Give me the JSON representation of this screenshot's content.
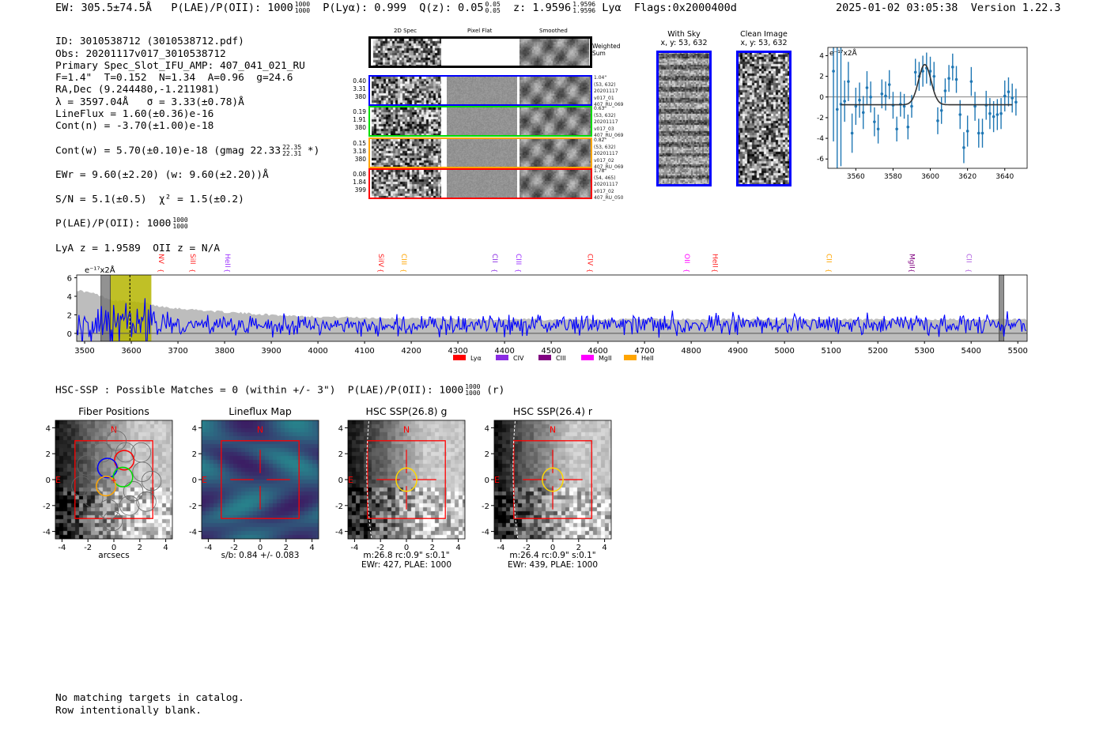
{
  "header": {
    "ew": "EW: 305.5±74.5Å",
    "plae_label": "P(LAE)/P(OII): 1000",
    "plae_hi": "1000",
    "plae_lo": "1000",
    "plya": "P(Lyα): 0.999",
    "qz_label": "Q(z): 0.05",
    "qz_hi": "0.05",
    "qz_lo": "0.05",
    "z_label": "z: 1.9596",
    "z_hi": "1.9596",
    "z_lo": "1.9596",
    "line": "Lyα",
    "flags": "Flags:0x2000400d",
    "datetime": "2025-01-02 03:05:38",
    "version": "Version 1.22.3"
  },
  "info": {
    "lines": [
      "ID: 3010538712 (3010538712.pdf)",
      "Obs: 20201117v017_3010538712",
      "Primary Spec_Slot_IFU_AMP: 407_041_021_RU",
      "F=1.4\"  T=0.152  N=1.34  A=0.96  g=24.6",
      "RA,Dec (9.244480,-1.211981)",
      "λ = 3597.04Å   σ = 3.33(±0.78)Å",
      "LineFlux = 1.60(±0.36)e-16",
      "Cont(n) = -3.70(±1.00)e-18"
    ],
    "contw": "Cont(w) = 5.70(±0.10)e-18 (gmag 22.33",
    "contw_hi": "22.35",
    "contw_lo": "22.31",
    "contw_end": "*)",
    "ewr": "EWr = 9.60(±2.20) (w: 9.60(±2.20))Å",
    "sn": "S/N = 5.1(±0.5)  χ² = 1.5(±0.2)",
    "plae": "P(LAE)/P(OII): 1000",
    "plae_hi": "1000",
    "plae_lo": "1000",
    "z": "LyA z = 1.9589  OII z = N/A"
  },
  "spec2d": {
    "col_headers": [
      "2D Spec",
      "Pixel Flat",
      "Smoothed"
    ],
    "weighted_label": "Weighted\nSum",
    "rows": [
      {
        "color": "#0000ff",
        "left": "0.40\n3.31\n380",
        "right": "1.04\"\n(53, 632)\n20201117\nv017_01\n407_RU_069"
      },
      {
        "color": "#00dd00",
        "left": "0.19\n1.91\n380",
        "right": "0.63\"\n(53, 632)\n20201117\nv017_03\n407_RU_069"
      },
      {
        "color": "#ffa500",
        "left": "0.15\n3.18\n380",
        "right": "0.82\"\n(53, 632)\n20201117\nv017_02\n407_RU_069"
      },
      {
        "color": "#ff0000",
        "left": "0.08\n1.84\n399",
        "right": "1.78\"\n(54, 465)\n20201117\nv017_02\n407_RU_050"
      }
    ]
  },
  "with_sky": {
    "title": "With Sky",
    "coords": "x, y: 53, 632"
  },
  "clean_image": {
    "title": "Clean Image",
    "coords": "x, y: 53, 632"
  },
  "chart_data": [
    {
      "type": "scatter",
      "name": "line-fit",
      "unit_label": "e⁻¹⁷x2Å",
      "xlim": [
        3545,
        3652
      ],
      "ylim": [
        -6.9,
        4.8
      ],
      "xticks": [
        3560,
        3580,
        3600,
        3620,
        3640
      ],
      "yticks": [
        -6,
        -4,
        -2,
        0,
        2,
        4
      ],
      "x": [
        3548,
        3550,
        3552,
        3554,
        3556,
        3558,
        3560,
        3562,
        3564,
        3566,
        3568,
        3570,
        3572,
        3574,
        3576,
        3578,
        3580,
        3582,
        3584,
        3586,
        3588,
        3590,
        3592,
        3594,
        3596,
        3598,
        3600,
        3602,
        3604,
        3606,
        3608,
        3610,
        3612,
        3614,
        3616,
        3618,
        3620,
        3622,
        3624,
        3626,
        3628,
        3630,
        3632,
        3634,
        3636,
        3638,
        3640,
        3642,
        3644,
        3646
      ],
      "y": [
        2.5,
        -1.2,
        -0.7,
        -0.4,
        1.5,
        -3.5,
        -0.9,
        -0.3,
        -1.5,
        0.9,
        0.0,
        -2.4,
        -3.1,
        0.3,
        0.1,
        1.2,
        -0.8,
        -3.1,
        -0.7,
        -0.9,
        -2.9,
        -0.9,
        2.4,
        2.0,
        2.5,
        2.8,
        2.5,
        2.0,
        -2.3,
        -1.3,
        0.6,
        1.8,
        2.9,
        1.7,
        -1.7,
        -4.9,
        -3.3,
        1.5,
        -0.9,
        -3.5,
        -3.5,
        -0.8,
        -1.6,
        -1.9,
        -1.7,
        -1.6,
        0.1,
        0.5,
        -0.1,
        -0.5
      ],
      "yerr": [
        6.8,
        7,
        6,
        2,
        1.9,
        1.9,
        1.8,
        1.7,
        1.6,
        1.6,
        1.5,
        1.4,
        1.4,
        1.4,
        1.4,
        1.4,
        1.3,
        1.2,
        1.2,
        1.2,
        1.2,
        1.1,
        1.3,
        1.4,
        1.5,
        1.5,
        1.4,
        1.4,
        1.3,
        1.3,
        1.2,
        1.3,
        1.3,
        1.3,
        1.4,
        1.5,
        1.5,
        1.4,
        1.4,
        1.4,
        1.4,
        1.4,
        1.5,
        1.5,
        1.5,
        1.5,
        1.5,
        1.4,
        1.4,
        1.3
      ],
      "model": {
        "center": 3597.04,
        "sigma": 3.33,
        "amplitude": 3.9,
        "baseline": -0.75,
        "xrange": [
          3552,
          3644
        ]
      }
    },
    {
      "type": "line",
      "name": "full-spectrum",
      "unit_label": "e⁻¹⁷x2Å",
      "xlim": [
        3483,
        5520
      ],
      "ylim": [
        -0.86,
        6.3
      ],
      "xticks": [
        3500,
        3600,
        3700,
        3800,
        3900,
        4000,
        4100,
        4200,
        4300,
        4400,
        4500,
        4600,
        4700,
        4800,
        4900,
        5000,
        5100,
        5200,
        5300,
        5400,
        5500
      ],
      "yticks": [
        0,
        2,
        4,
        6
      ],
      "error_band": {
        "x": [
          3490,
          3520,
          3560,
          3640,
          3650,
          3700,
          3800,
          3900,
          4000,
          4200,
          4400,
          4600,
          5000,
          5500,
          5520
        ],
        "y": [
          4.6,
          4.3,
          3.6,
          3.2,
          3.0,
          2.7,
          2.3,
          2.0,
          1.8,
          1.6,
          1.5,
          1.5,
          1.5,
          1.5,
          1.5
        ]
      },
      "noise_seed": 17,
      "highlight": {
        "mask_range": [
          3535,
          3555
        ],
        "fit_range": [
          3555,
          3643
        ],
        "line_center": 3597,
        "right_mask": [
          5460,
          5470
        ]
      },
      "lines": [
        {
          "label": "NV",
          "wave": 3666,
          "color": "#ff2020"
        },
        {
          "label": "SiII",
          "wave": 3734,
          "color": "#ff2020"
        },
        {
          "label": "HeII",
          "wave": 3808,
          "color": "#9b30ff"
        },
        {
          "label": "SiIV",
          "wave": 4137,
          "color": "#ff2020"
        },
        {
          "label": "CIII",
          "wave": 4186,
          "color": "#ffa500"
        },
        {
          "label": "CII",
          "wave": 4381,
          "color": "#8a2be2"
        },
        {
          "label": "CIII",
          "wave": 4432,
          "color": "#9b30ff"
        },
        {
          "label": "CIV",
          "wave": 4585,
          "color": "#ff2020"
        },
        {
          "label": "OII",
          "wave": 4793,
          "color": "#ff00ff"
        },
        {
          "label": "HeII",
          "wave": 4853,
          "color": "#ff2020"
        },
        {
          "label": "CII",
          "wave": 5097,
          "color": "#ffa500"
        },
        {
          "label": "MgII",
          "wave": 5275,
          "color": "#800080"
        },
        {
          "label": "CII",
          "wave": 5397,
          "color": "#b060e0"
        }
      ],
      "legend": [
        {
          "label": "Lyα",
          "color": "#ff0000"
        },
        {
          "label": "CIV",
          "color": "#8a2be2"
        },
        {
          "label": "CIII",
          "color": "#800080"
        },
        {
          "label": "MgII",
          "color": "#ff00ff"
        },
        {
          "label": "HeII",
          "color": "#ffa500"
        }
      ]
    }
  ],
  "hsc": {
    "line": "HSC-SSP : Possible Matches = 0 (within +/- 3\")  P(LAE)/P(OII): 1000",
    "hi": "1000",
    "lo": "1000",
    "end": "(r)"
  },
  "cutouts": [
    {
      "title": "Fiber Positions",
      "caption1": "arcsecs",
      "caption2": "",
      "kind": "fibers"
    },
    {
      "title": "Lineflux Map",
      "caption1": "s/b: 0.84 +/- 0.083",
      "caption2": "",
      "kind": "lineflux"
    },
    {
      "title": "HSC SSP(26.8) g",
      "caption1": "m:26.8 rc:0.9\"  s:0.1\"",
      "caption2": "EWr: 427, PLAE: 1000",
      "kind": "hsc"
    },
    {
      "title": "HSC SSP(26.4) r",
      "caption1": "m:26.4 rc:0.9\"  s:0.1\"",
      "caption2": "EWr: 439, PLAE: 1000",
      "kind": "hsc"
    }
  ],
  "compass": {
    "north": "N",
    "east": "E"
  },
  "cutout_ticks": [
    "-4",
    "-2",
    "0",
    "2",
    "4"
  ],
  "footer": [
    "No matching targets in catalog.",
    "Row intentionally blank."
  ]
}
